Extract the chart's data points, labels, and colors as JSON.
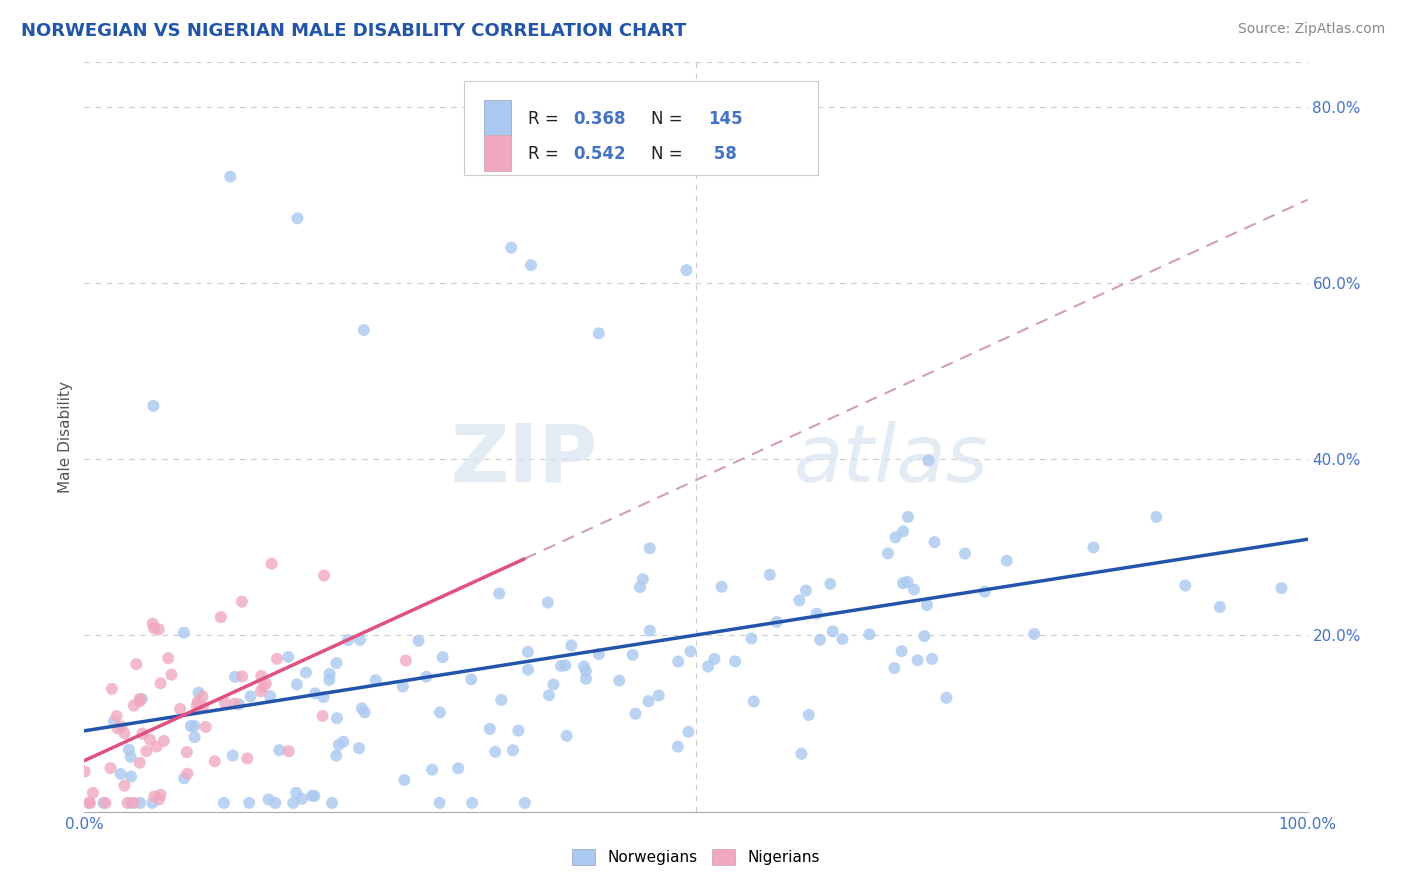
{
  "title": "NORWEGIAN VS NIGERIAN MALE DISABILITY CORRELATION CHART",
  "source": "Source: ZipAtlas.com",
  "ylabel": "Male Disability",
  "watermark": "ZIPatlas",
  "norwegian_R": 0.368,
  "norwegian_N": 145,
  "nigerian_R": 0.542,
  "nigerian_N": 58,
  "norwegian_color": "#aac8f0",
  "nigerian_color": "#f0a8c0",
  "norwegian_line_color": "#2255aa",
  "nigerian_line_color": "#e05080",
  "dashed_line_color": "#d0a0b0",
  "background_color": "#ffffff",
  "grid_color": "#cccccc",
  "title_color": "#2255aa",
  "xlim": [
    0.0,
    1.0
  ],
  "ylim": [
    0.0,
    0.85
  ],
  "xticklabels": [
    "0.0%",
    "100.0%"
  ],
  "yticklabels": [
    "20.0%",
    "40.0%",
    "60.0%",
    "80.0%"
  ],
  "ytick_positions": [
    0.2,
    0.4,
    0.6,
    0.8
  ],
  "legend_label_norwegian": "Norwegians",
  "legend_label_nigerian": "Nigerians"
}
